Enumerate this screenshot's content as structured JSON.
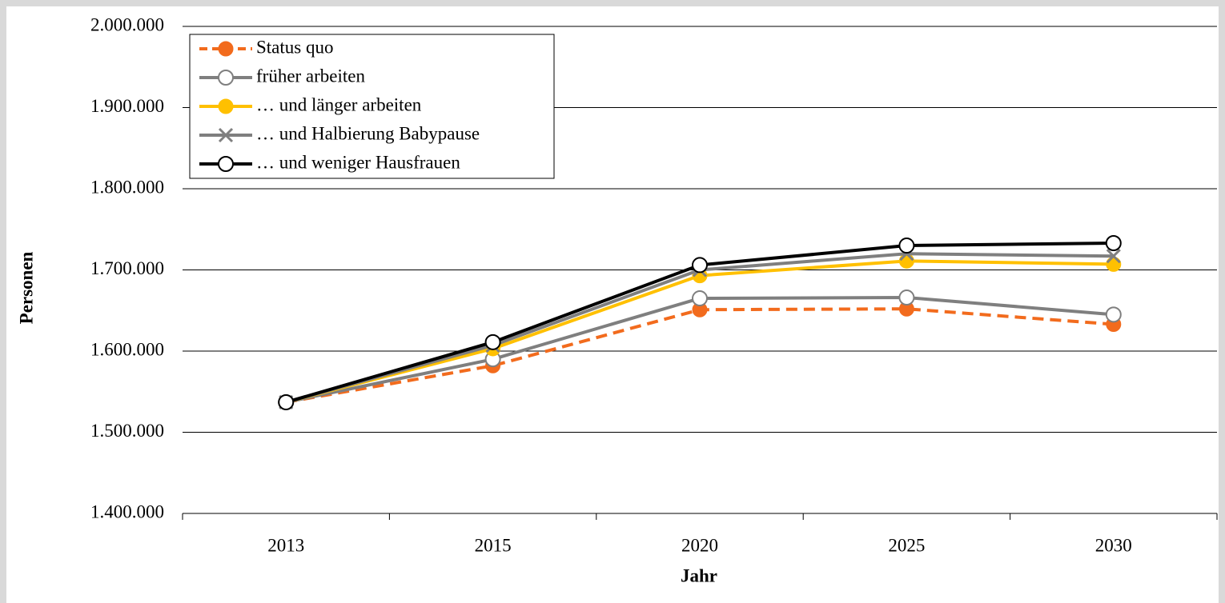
{
  "chart_data": {
    "type": "line",
    "x_label": "Jahr",
    "y_label": "Personen",
    "categories": [
      "2013",
      "2015",
      "2020",
      "2025",
      "2030"
    ],
    "ylim": [
      1400000,
      2000000
    ],
    "yticks": [
      {
        "value": 1400000,
        "label": "1.400.000"
      },
      {
        "value": 1500000,
        "label": "1.500.000"
      },
      {
        "value": 1600000,
        "label": "1.600.000"
      },
      {
        "value": 1700000,
        "label": "1.700.000"
      },
      {
        "value": 1800000,
        "label": "1.800.000"
      },
      {
        "value": 1900000,
        "label": "1.900.000"
      },
      {
        "value": 2000000,
        "label": "2.000.000"
      }
    ],
    "grid": true,
    "legend": "upper left",
    "series": [
      {
        "name": "Status quo",
        "color": "#f26b1d",
        "marker": "filled-circle",
        "dashed": true,
        "values": [
          1537000,
          1582000,
          1651000,
          1652000,
          1633000
        ]
      },
      {
        "name": "früher arbeiten",
        "color": "#7f7f7f",
        "marker": "open-circle",
        "dashed": false,
        "values": [
          1537000,
          1590000,
          1665000,
          1666000,
          1645000
        ]
      },
      {
        "name": "… und länger  arbeiten",
        "color": "#ffc000",
        "marker": "filled-circle",
        "dashed": false,
        "values": [
          1537000,
          1603000,
          1693000,
          1711000,
          1707000
        ]
      },
      {
        "name": "… und Halbierung Babypause",
        "color": "#7f7f7f",
        "marker": "x",
        "dashed": false,
        "values": [
          1537000,
          1607000,
          1700000,
          1720000,
          1717000
        ]
      },
      {
        "name": "… und weniger Hausfrauen",
        "color": "#000000",
        "marker": "open-circle",
        "dashed": false,
        "values": [
          1537000,
          1611000,
          1706000,
          1730000,
          1733000
        ]
      }
    ]
  }
}
